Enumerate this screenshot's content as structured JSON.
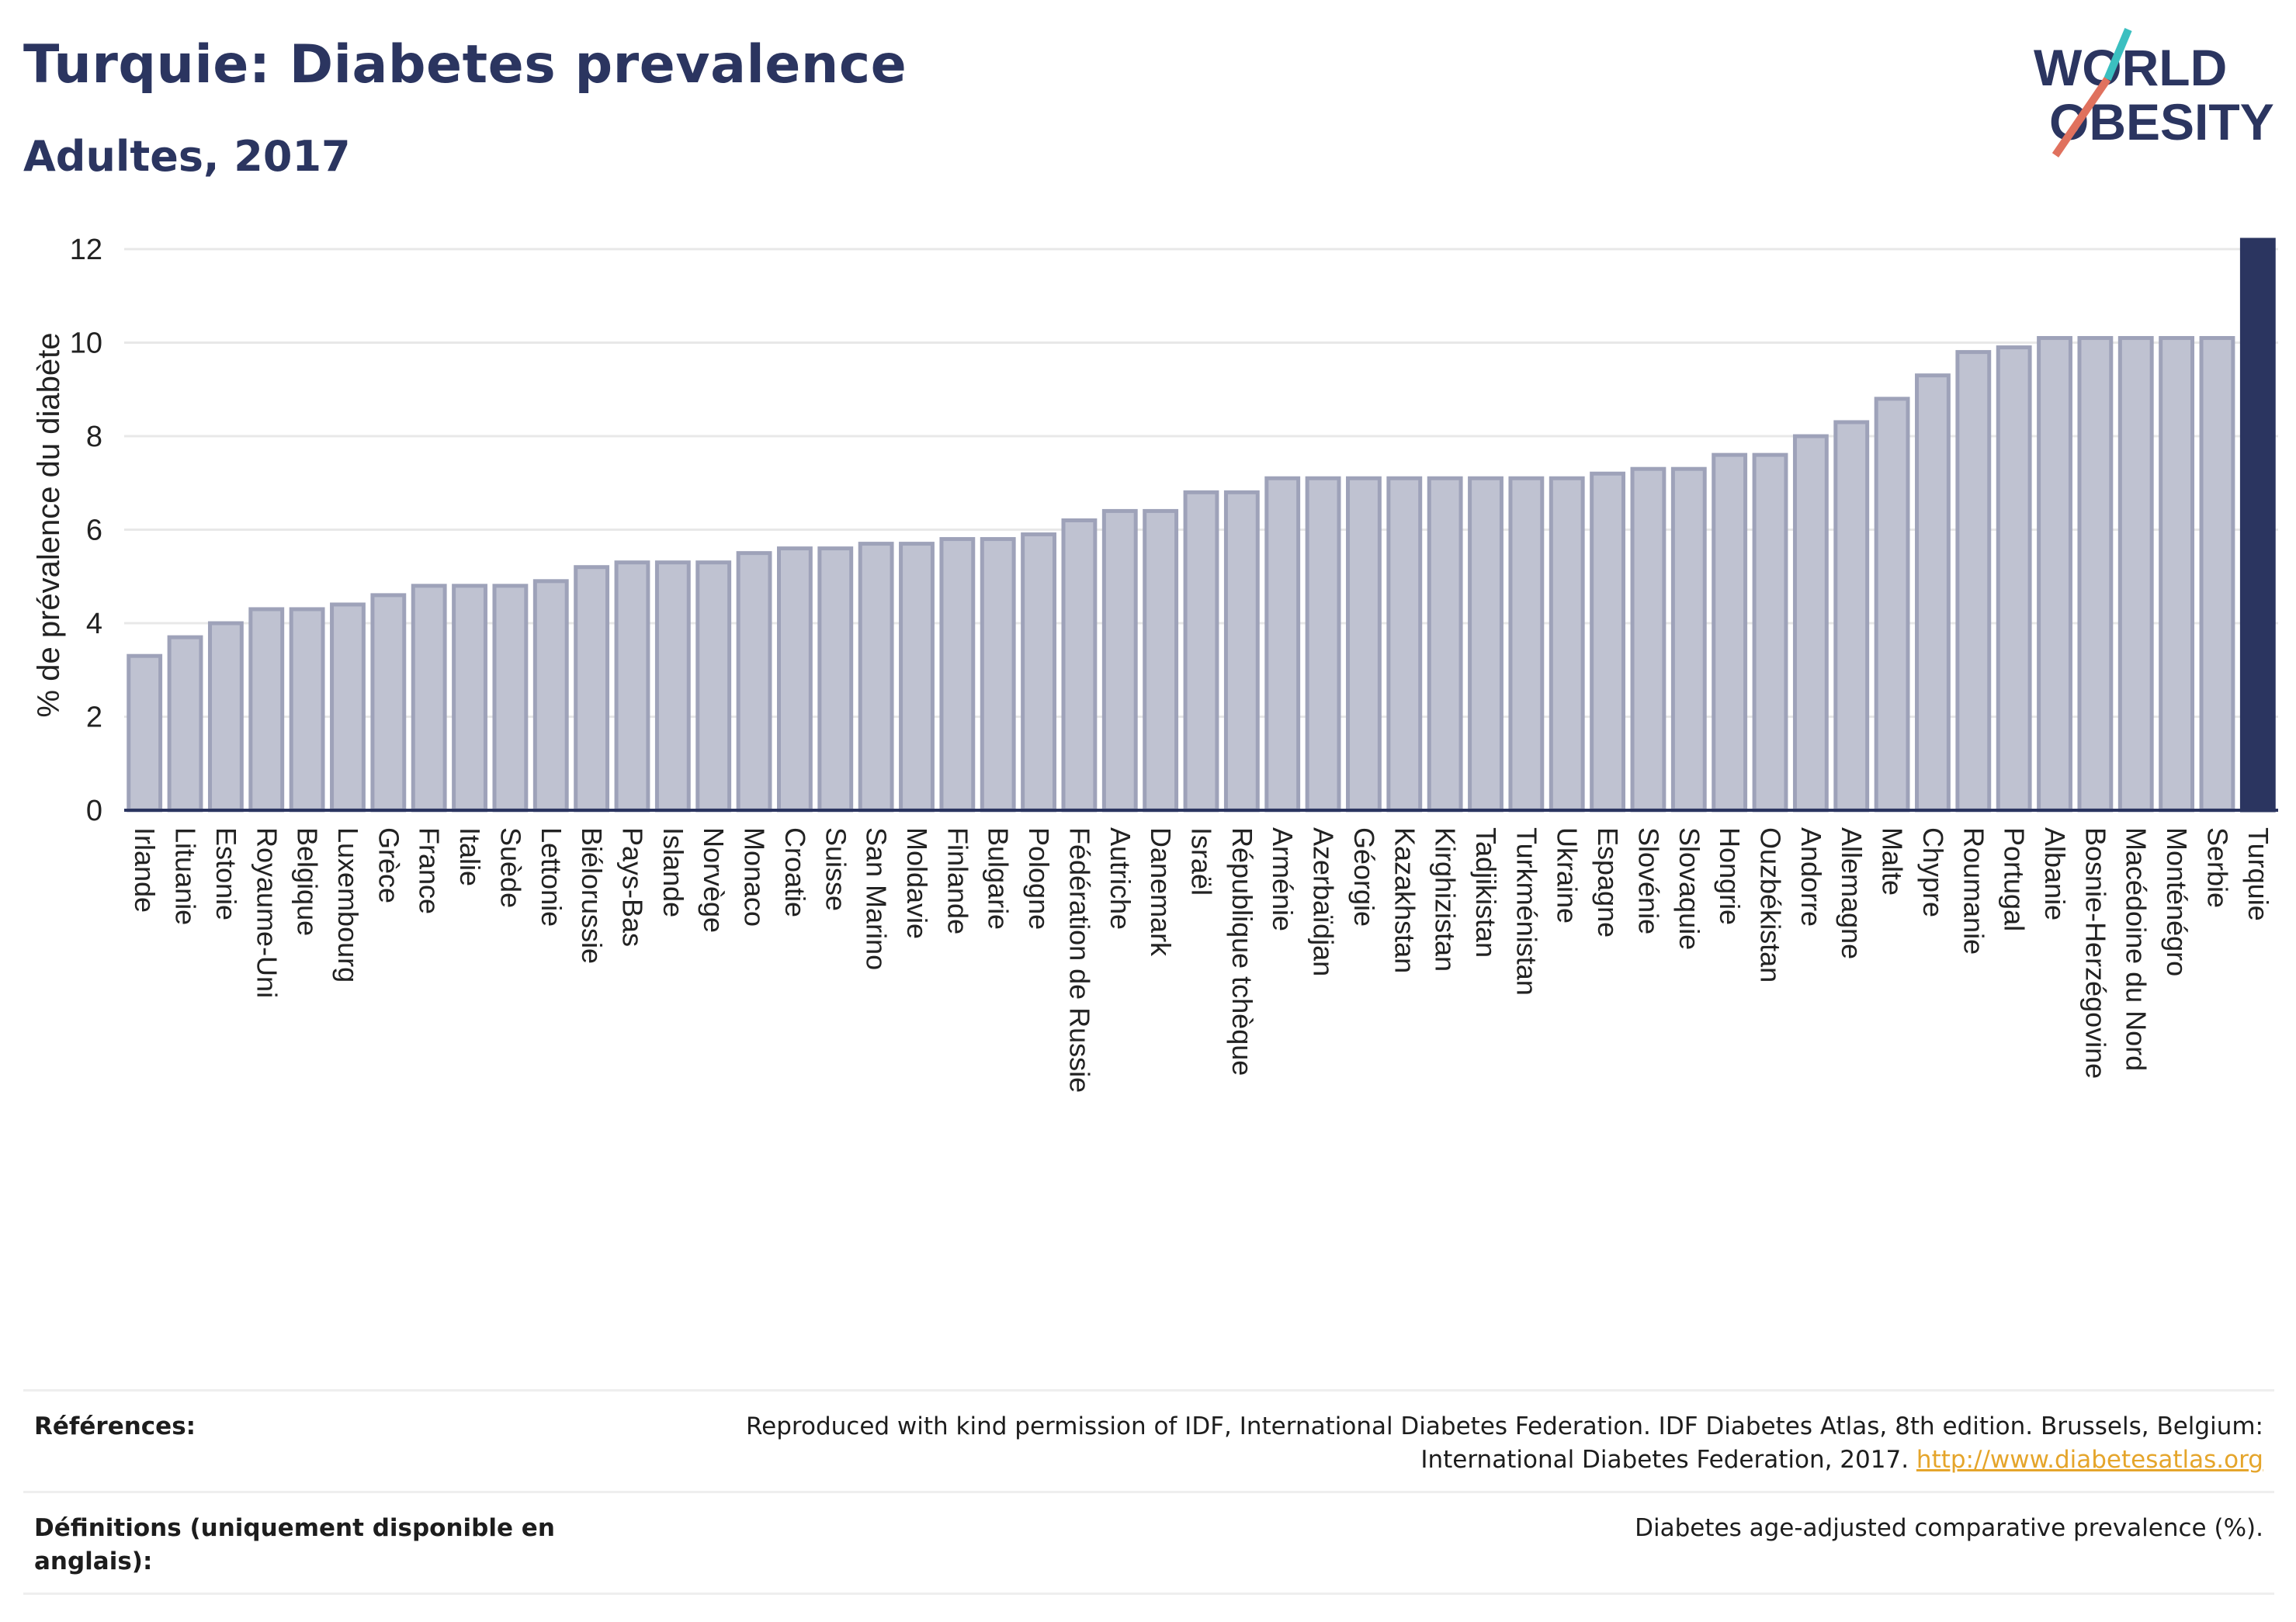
{
  "header": {
    "title": "Turquie: Diabetes prevalence",
    "subtitle": "Adultes, 2017"
  },
  "logo": {
    "line1": "WORLD",
    "line2": "OBESITY",
    "colors": {
      "text": "#2b3560",
      "slash_teal": "#3bbfc0",
      "slash_coral": "#e0715e"
    }
  },
  "colors": {
    "bar_fill": "#bfc2d1",
    "bar_stroke": "#9ea2b9",
    "highlight": "#2b3560",
    "grid": "#e8e8e8",
    "axis": "#2b3560"
  },
  "chart_data": {
    "type": "bar",
    "title": "Turquie: Diabetes prevalence",
    "subtitle": "Adultes, 2017",
    "xlabel": "",
    "ylabel": "% de prévalence du diabète",
    "ylim": [
      0,
      12.2
    ],
    "yticks": [
      0,
      2,
      4,
      6,
      8,
      10,
      12
    ],
    "grid": true,
    "highlight_category": "Turquie",
    "categories": [
      "Irlande",
      "Lituanie",
      "Estonie",
      "Royaume-Uni",
      "Belgique",
      "Luxembourg",
      "Grèce",
      "France",
      "Italie",
      "Suède",
      "Lettonie",
      "Biélorussie",
      "Pays-Bas",
      "Islande",
      "Norvège",
      "Monaco",
      "Croatie",
      "Suisse",
      "San Marino",
      "Moldavie",
      "Finlande",
      "Bulgarie",
      "Pologne",
      "Fédération de Russie",
      "Autriche",
      "Danemark",
      "Israël",
      "République tchèque",
      "Arménie",
      "Azerbaïdjan",
      "Géorgie",
      "Kazakhstan",
      "Kirghizistan",
      "Tadjikistan",
      "Turkménistan",
      "Ukraine",
      "Espagne",
      "Slovénie",
      "Slovaquie",
      "Hongrie",
      "Ouzbékistan",
      "Andorre",
      "Allemagne",
      "Malte",
      "Chypre",
      "Roumanie",
      "Portugal",
      "Albanie",
      "Bosnie-Herzégovine",
      "Macédoine du Nord",
      "Monténégro",
      "Serbie",
      "Turquie"
    ],
    "values": [
      3.3,
      3.7,
      4.0,
      4.3,
      4.3,
      4.4,
      4.6,
      4.8,
      4.8,
      4.8,
      4.9,
      5.2,
      5.3,
      5.3,
      5.3,
      5.5,
      5.6,
      5.6,
      5.7,
      5.7,
      5.8,
      5.8,
      5.9,
      6.2,
      6.4,
      6.4,
      6.8,
      6.8,
      7.1,
      7.1,
      7.1,
      7.1,
      7.1,
      7.1,
      7.1,
      7.1,
      7.2,
      7.3,
      7.3,
      7.6,
      7.6,
      8.0,
      8.3,
      8.8,
      9.3,
      9.8,
      9.9,
      10.1,
      10.1,
      10.1,
      10.1,
      10.1,
      12.2
    ]
  },
  "references": {
    "refs_label": "Références:",
    "refs_text": "Reproduced with kind permission of IDF, International Diabetes Federation. IDF Diabetes Atlas, 8th edition. Brussels, Belgium: International Diabetes Federation, 2017.",
    "refs_link": "http://www.diabetesatlas.org",
    "defs_label": "Définitions (uniquement disponible en anglais):",
    "defs_text": "Diabetes age-adjusted comparative prevalence (%)."
  }
}
